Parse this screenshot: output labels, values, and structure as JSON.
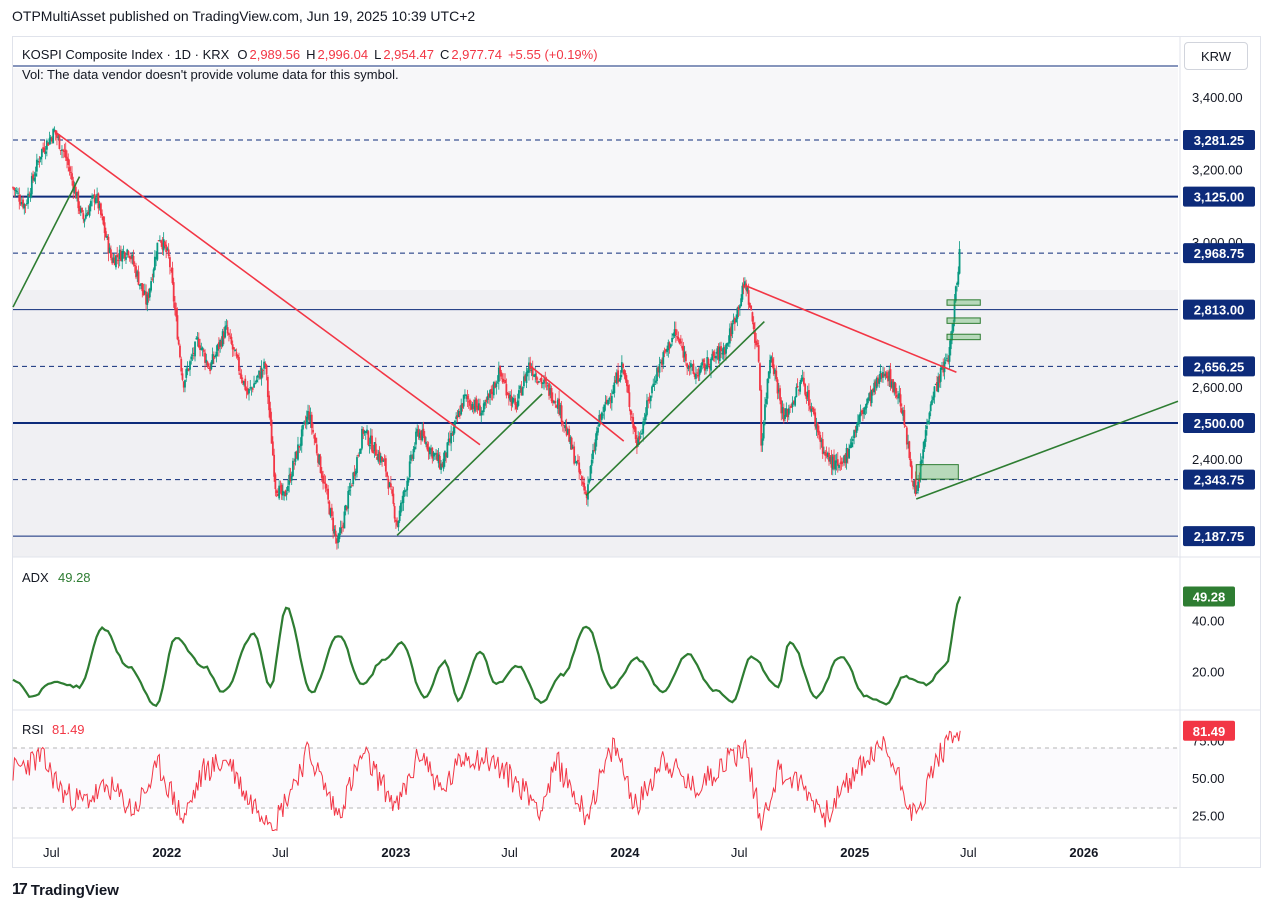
{
  "publisher_line": "OTPMultiAsset published on TradingView.com, Jun 19, 2025 10:39 UTC+2",
  "footer": {
    "logo_text": "TradingView",
    "logo_glyph": "17"
  },
  "currency_button": "KRW",
  "legend": {
    "symbol": "KOSPI Composite Index · 1D · KRX",
    "o_label": "O",
    "o": "2,989.56",
    "h_label": "H",
    "h": "2,996.04",
    "l_label": "L",
    "l": "2,954.47",
    "c_label": "C",
    "c": "2,977.74",
    "change": "+5.55 (+0.19%)",
    "vol_note": "Vol: The data vendor doesn't provide volume data for this symbol."
  },
  "colors": {
    "up": "#089981",
    "down": "#f23645",
    "navy": "#0d2b7a",
    "green_line": "#2e7d32",
    "red_line": "#f23645",
    "adx": "#2e7d32",
    "rsi": "#f23645"
  },
  "chart_data": [
    {
      "type": "candlestick",
      "x_ticks": [
        "Jul",
        "2022",
        "Jul",
        "2023",
        "Jul",
        "2024",
        "Jul",
        "2025",
        "Jul",
        "2026"
      ],
      "y_ticks": [
        "3,400.00",
        "3,200.00",
        "3,000.00",
        "2,600.00",
        "2,400.00",
        "2,200.00"
      ],
      "ylim": [
        2130,
        3480
      ],
      "x_range": [
        "2021-05-01",
        "2026-05-31"
      ],
      "horizontal_levels": [
        {
          "value": 3281.25,
          "label": "3,281.25",
          "style": "dashed"
        },
        {
          "value": 3125.0,
          "label": "3,125.00",
          "style": "solid-thick"
        },
        {
          "value": 2968.75,
          "label": "2,968.75",
          "style": "dashed"
        },
        {
          "value": 2813.0,
          "label": "2,813.00",
          "style": "solid"
        },
        {
          "value": 2656.25,
          "label": "2,656.25",
          "style": "dashed"
        },
        {
          "value": 2500.0,
          "label": "2,500.00",
          "style": "solid-thick"
        },
        {
          "value": 2343.75,
          "label": "2,343.75",
          "style": "dashed"
        },
        {
          "value": 2187.75,
          "label": "2,187.75",
          "style": "solid"
        }
      ],
      "trendlines": [
        {
          "color": "green",
          "points": [
            [
              "2021-05-01",
              2820
            ],
            [
              "2021-08-15",
              3180
            ]
          ]
        },
        {
          "color": "red",
          "points": [
            [
              "2021-07-06",
              3305
            ],
            [
              "2023-05-15",
              2440
            ]
          ]
        },
        {
          "color": "green",
          "points": [
            [
              "2023-01-03",
              2190
            ],
            [
              "2023-08-22",
              2580
            ]
          ]
        },
        {
          "color": "red",
          "points": [
            [
              "2023-08-01",
              2660
            ],
            [
              "2023-12-30",
              2450
            ]
          ]
        },
        {
          "color": "green",
          "points": [
            [
              "2023-10-31",
              2300
            ],
            [
              "2024-08-10",
              2780
            ]
          ]
        },
        {
          "color": "red",
          "points": [
            [
              "2024-07-10",
              2880
            ],
            [
              "2025-06-12",
              2640
            ]
          ]
        },
        {
          "color": "green",
          "points": [
            [
              "2025-04-09",
              2290
            ],
            [
              "2026-05-31",
              2560
            ]
          ]
        }
      ],
      "zones": [
        {
          "from": [
            "2025-05-28",
            2840
          ],
          "to": [
            "2025-07-20",
            2825
          ]
        },
        {
          "from": [
            "2025-05-28",
            2790
          ],
          "to": [
            "2025-07-20",
            2775
          ]
        },
        {
          "from": [
            "2025-05-28",
            2745
          ],
          "to": [
            "2025-07-20",
            2730
          ]
        },
        {
          "from": [
            "2025-04-09",
            2385
          ],
          "to": [
            "2025-06-15",
            2345
          ]
        }
      ],
      "price_path": [
        [
          "2021-05-01",
          3150
        ],
        [
          "2021-05-20",
          3100
        ],
        [
          "2021-06-15",
          3250
        ],
        [
          "2021-07-06",
          3305
        ],
        [
          "2021-07-25",
          3230
        ],
        [
          "2021-08-20",
          3060
        ],
        [
          "2021-09-10",
          3130
        ],
        [
          "2021-10-05",
          2950
        ],
        [
          "2021-11-01",
          2980
        ],
        [
          "2021-11-30",
          2830
        ],
        [
          "2021-12-20",
          3020
        ],
        [
          "2022-01-05",
          2950
        ],
        [
          "2022-01-27",
          2610
        ],
        [
          "2022-02-20",
          2730
        ],
        [
          "2022-03-10",
          2650
        ],
        [
          "2022-04-05",
          2760
        ],
        [
          "2022-05-10",
          2580
        ],
        [
          "2022-06-07",
          2660
        ],
        [
          "2022-06-23",
          2330
        ],
        [
          "2022-07-06",
          2290
        ],
        [
          "2022-08-15",
          2530
        ],
        [
          "2022-09-30",
          2160
        ],
        [
          "2022-11-10",
          2480
        ],
        [
          "2022-12-15",
          2380
        ],
        [
          "2023-01-03",
          2220
        ],
        [
          "2023-02-05",
          2480
        ],
        [
          "2023-03-15",
          2380
        ],
        [
          "2023-04-20",
          2570
        ],
        [
          "2023-05-20",
          2530
        ],
        [
          "2023-06-15",
          2640
        ],
        [
          "2023-07-10",
          2540
        ],
        [
          "2023-08-01",
          2660
        ],
        [
          "2023-09-15",
          2560
        ],
        [
          "2023-10-31",
          2300
        ],
        [
          "2023-11-20",
          2500
        ],
        [
          "2023-12-28",
          2660
        ],
        [
          "2024-01-20",
          2440
        ],
        [
          "2024-02-20",
          2640
        ],
        [
          "2024-03-20",
          2750
        ],
        [
          "2024-04-20",
          2630
        ],
        [
          "2024-06-10",
          2710
        ],
        [
          "2024-07-11",
          2890
        ],
        [
          "2024-08-02",
          2670
        ],
        [
          "2024-08-05",
          2440
        ],
        [
          "2024-08-20",
          2700
        ],
        [
          "2024-09-10",
          2510
        ],
        [
          "2024-10-10",
          2620
        ],
        [
          "2024-11-15",
          2410
        ],
        [
          "2024-12-09",
          2370
        ],
        [
          "2025-01-10",
          2520
        ],
        [
          "2025-02-18",
          2650
        ],
        [
          "2025-03-15",
          2560
        ],
        [
          "2025-04-09",
          2290
        ],
        [
          "2025-05-01",
          2560
        ],
        [
          "2025-06-02",
          2700
        ],
        [
          "2025-06-18",
          2990
        ]
      ]
    },
    {
      "type": "line",
      "name": "ADX",
      "value_label": "49.28",
      "y_ticks": [
        "40.00",
        "20.00"
      ],
      "ylim": [
        5,
        60
      ],
      "path": [
        [
          "2021-05-01",
          17
        ],
        [
          "2021-06-01",
          10
        ],
        [
          "2021-07-01",
          16
        ],
        [
          "2021-08-15",
          14
        ],
        [
          "2021-09-20",
          37
        ],
        [
          "2021-11-01",
          22
        ],
        [
          "2021-12-15",
          7
        ],
        [
          "2022-01-15",
          33
        ],
        [
          "2022-03-01",
          22
        ],
        [
          "2022-04-01",
          12
        ],
        [
          "2022-05-20",
          35
        ],
        [
          "2022-06-15",
          14
        ],
        [
          "2022-07-10",
          45
        ],
        [
          "2022-08-20",
          12
        ],
        [
          "2022-10-01",
          34
        ],
        [
          "2022-11-10",
          15
        ],
        [
          "2022-12-10",
          24
        ],
        [
          "2023-01-10",
          31
        ],
        [
          "2023-02-15",
          10
        ],
        [
          "2023-03-20",
          24
        ],
        [
          "2023-04-10",
          9
        ],
        [
          "2023-05-15",
          28
        ],
        [
          "2023-06-10",
          15
        ],
        [
          "2023-07-15",
          22
        ],
        [
          "2023-08-20",
          8
        ],
        [
          "2023-09-25",
          19
        ],
        [
          "2023-10-31",
          38
        ],
        [
          "2023-12-10",
          14
        ],
        [
          "2024-01-20",
          25
        ],
        [
          "2024-03-01",
          12
        ],
        [
          "2024-04-10",
          27
        ],
        [
          "2024-05-20",
          13
        ],
        [
          "2024-06-20",
          8
        ],
        [
          "2024-07-20",
          26
        ],
        [
          "2024-09-01",
          14
        ],
        [
          "2024-09-20",
          32
        ],
        [
          "2024-11-01",
          10
        ],
        [
          "2024-12-10",
          26
        ],
        [
          "2025-01-20",
          10
        ],
        [
          "2025-02-20",
          7
        ],
        [
          "2025-03-20",
          18
        ],
        [
          "2025-04-25",
          15
        ],
        [
          "2025-05-25",
          22
        ],
        [
          "2025-06-18",
          49.28
        ]
      ]
    },
    {
      "type": "line",
      "name": "RSI",
      "value_label": "81.49",
      "y_ticks": [
        "75.00",
        "50.00",
        "25.00"
      ],
      "levels": [
        70,
        30
      ],
      "ylim": [
        10,
        90
      ],
      "path": [
        [
          "2021-05-01",
          55
        ],
        [
          "2021-06-15",
          64
        ],
        [
          "2021-07-20",
          40
        ],
        [
          "2021-08-20",
          34
        ],
        [
          "2021-10-01",
          44
        ],
        [
          "2021-11-10",
          28
        ],
        [
          "2021-12-20",
          58
        ],
        [
          "2022-01-27",
          22
        ],
        [
          "2022-03-01",
          55
        ],
        [
          "2022-04-10",
          62
        ],
        [
          "2022-05-10",
          36
        ],
        [
          "2022-06-23",
          21
        ],
        [
          "2022-08-15",
          68
        ],
        [
          "2022-09-30",
          25
        ],
        [
          "2022-11-10",
          66
        ],
        [
          "2023-01-03",
          30
        ],
        [
          "2023-02-10",
          68
        ],
        [
          "2023-03-15",
          40
        ],
        [
          "2023-04-20",
          65
        ],
        [
          "2023-06-01",
          62
        ],
        [
          "2023-07-20",
          44
        ],
        [
          "2023-08-20",
          30
        ],
        [
          "2023-09-15",
          60
        ],
        [
          "2023-10-31",
          25
        ],
        [
          "2023-12-15",
          72
        ],
        [
          "2024-01-20",
          30
        ],
        [
          "2024-03-01",
          64
        ],
        [
          "2024-04-20",
          42
        ],
        [
          "2024-06-10",
          62
        ],
        [
          "2024-07-11",
          70
        ],
        [
          "2024-08-05",
          20
        ],
        [
          "2024-09-01",
          55
        ],
        [
          "2024-10-10",
          45
        ],
        [
          "2024-11-15",
          25
        ],
        [
          "2025-01-10",
          58
        ],
        [
          "2025-02-18",
          72
        ],
        [
          "2025-03-15",
          48
        ],
        [
          "2025-04-09",
          22
        ],
        [
          "2025-05-10",
          62
        ],
        [
          "2025-06-18",
          81.49
        ]
      ]
    }
  ]
}
